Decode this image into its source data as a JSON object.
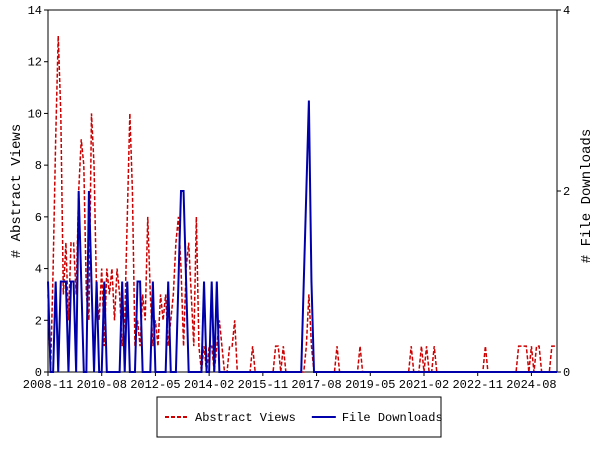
{
  "chart_data": {
    "type": "line",
    "y_label": "# Abstract Views",
    "y2_label": "# File Downloads",
    "categories": [
      "2008-11",
      null,
      null,
      null,
      null,
      null,
      null,
      null,
      null,
      null,
      null,
      null,
      null,
      null,
      null,
      null,
      null,
      null,
      null,
      null,
      null,
      "2010-08",
      null,
      null,
      null,
      null,
      null,
      null,
      null,
      null,
      null,
      null,
      null,
      null,
      null,
      null,
      null,
      null,
      null,
      null,
      null,
      null,
      "2012-05",
      null,
      null,
      null,
      null,
      null,
      null,
      null,
      null,
      null,
      null,
      null,
      null,
      null,
      null,
      null,
      null,
      null,
      null,
      null,
      null,
      "2014-02",
      null,
      null,
      null,
      null,
      null,
      null,
      null,
      null,
      null,
      null,
      null,
      null,
      null,
      null,
      null,
      null,
      null,
      null,
      null,
      null,
      "2015-11",
      null,
      null,
      null,
      null,
      null,
      null,
      null,
      null,
      null,
      null,
      null,
      null,
      null,
      null,
      null,
      null,
      null,
      null,
      null,
      null,
      "2017-08",
      null,
      null,
      null,
      null,
      null,
      null,
      null,
      null,
      null,
      null,
      null,
      null,
      null,
      null,
      null,
      null,
      null,
      null,
      null,
      null,
      "2019-05",
      null,
      null,
      null,
      null,
      null,
      null,
      null,
      null,
      null,
      null,
      null,
      null,
      null,
      null,
      null,
      null,
      null,
      null,
      null,
      null,
      "2021-02",
      null,
      null,
      null,
      null,
      null,
      null,
      null,
      null,
      null,
      null,
      null,
      null,
      null,
      null,
      null,
      null,
      null,
      null,
      null,
      null,
      "2022-11",
      null,
      null,
      null,
      null,
      null,
      null,
      null,
      null,
      null,
      null,
      null,
      null,
      null,
      null,
      null,
      null,
      null,
      null,
      null,
      null,
      "2024-08",
      null,
      null,
      null,
      null,
      null,
      null,
      null,
      null,
      null,
      null
    ],
    "series": [
      {
        "name": "Abstract Views",
        "color": "#cc0000",
        "dash": true,
        "values": [
          3,
          0,
          4,
          9,
          13,
          10,
          3,
          5,
          2,
          5,
          5,
          3,
          7,
          9,
          8,
          3,
          2,
          10,
          8,
          3,
          2,
          4,
          1,
          4,
          3,
          4,
          2,
          4,
          3,
          1,
          2,
          6,
          10,
          7,
          1,
          2,
          1,
          3,
          2,
          6,
          3,
          1,
          2,
          1,
          3,
          2,
          3,
          1,
          2,
          3,
          5,
          6,
          4,
          1,
          4,
          5,
          3,
          1,
          6,
          1,
          0,
          1,
          0,
          1,
          1,
          0,
          1,
          2,
          1,
          0,
          0,
          1,
          1,
          2,
          0,
          0,
          0,
          0,
          0,
          0,
          1,
          0,
          0,
          0,
          0,
          0,
          0,
          0,
          0,
          1,
          1,
          0,
          1,
          0,
          0,
          0,
          0,
          0,
          0,
          0,
          0,
          1,
          3,
          1,
          0,
          0,
          0,
          0,
          0,
          0,
          0,
          0,
          0,
          1,
          0,
          0,
          0,
          0,
          0,
          0,
          0,
          0,
          1,
          0,
          0,
          0,
          0,
          0,
          0,
          0,
          0,
          0,
          0,
          0,
          0,
          0,
          0,
          0,
          0,
          0,
          0,
          0,
          1,
          0,
          0,
          0,
          1,
          0,
          1,
          0,
          0,
          1,
          0,
          0,
          0,
          0,
          0,
          0,
          0,
          0,
          0,
          0,
          0,
          0,
          0,
          0,
          0,
          0,
          0,
          0,
          0,
          1,
          0,
          0,
          0,
          0,
          0,
          0,
          0,
          0,
          0,
          0,
          0,
          0,
          1,
          1,
          1,
          1,
          0,
          1,
          0,
          1,
          1,
          0,
          0,
          0,
          0,
          1,
          1,
          1
        ]
      },
      {
        "name": "File Downloads",
        "color": "#0000aa",
        "axis": "y2",
        "values": [
          1,
          0,
          0,
          1,
          0,
          1,
          1,
          1,
          0,
          1,
          1,
          0,
          2,
          1,
          0,
          0,
          2,
          1,
          0,
          1,
          0,
          0,
          1,
          0,
          0,
          0,
          0,
          0,
          0,
          1,
          0,
          1,
          0,
          0,
          0,
          1,
          1,
          0,
          0,
          0,
          0,
          1,
          0,
          0,
          0,
          0,
          0,
          1,
          0,
          0,
          0,
          1,
          2,
          2,
          1,
          0,
          0,
          0,
          0,
          0,
          0,
          1,
          0,
          0,
          1,
          0,
          1,
          0,
          0,
          0,
          0,
          0,
          0,
          0,
          0,
          0,
          0,
          0,
          0,
          0,
          0,
          0,
          0,
          0,
          0,
          0,
          0,
          0,
          0,
          0,
          0,
          0,
          0,
          0,
          0,
          0,
          0,
          0,
          0,
          0,
          1,
          2,
          3,
          1,
          0,
          0,
          0,
          0,
          0,
          0,
          0,
          0,
          0,
          0,
          0,
          0,
          0,
          0,
          0,
          0,
          0,
          0,
          0,
          0,
          0,
          0,
          0,
          0,
          0,
          0,
          0,
          0,
          0,
          0,
          0,
          0,
          0,
          0,
          0,
          0,
          0,
          0,
          0,
          0,
          0,
          0,
          0,
          0,
          0,
          0,
          0,
          0,
          0,
          0,
          0,
          0,
          0,
          0,
          0,
          0,
          0,
          0,
          0,
          0,
          0,
          0,
          0,
          0,
          0,
          0,
          0,
          0,
          0,
          0,
          0,
          0,
          0,
          0,
          0,
          0,
          0,
          0,
          0,
          0,
          0,
          0,
          0,
          0,
          0,
          0,
          0,
          0,
          0,
          0,
          0,
          0,
          0,
          0,
          0,
          0
        ]
      }
    ],
    "ylim": [
      0,
      14
    ],
    "yticks": [
      0,
      2,
      4,
      6,
      8,
      10,
      12,
      14
    ],
    "y2lim": [
      0,
      4
    ],
    "y2ticks": [
      0,
      2,
      4
    ],
    "legend": "bottom"
  }
}
